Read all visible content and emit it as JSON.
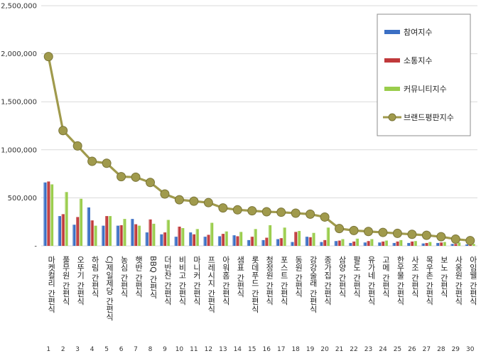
{
  "chart_data": {
    "type": "bar",
    "title": "",
    "xlabel": "",
    "ylabel": "",
    "ylim": [
      0,
      2500000
    ],
    "yticks": [
      0,
      500000,
      1000000,
      1500000,
      2000000,
      2500000
    ],
    "ytick_labels": [
      "-",
      "500,000",
      "1,000,000",
      "1,500,000",
      "2,000,000",
      "2,500,000"
    ],
    "grid": true,
    "legend_position": "top-right",
    "categories": [
      "마켓컬리 간편식",
      "풀무원 간편식",
      "오뚜기 간편식",
      "하림 간편식",
      "CJ제일제당 간편식",
      "농심 간편식",
      "햇반 간편식",
      "BBQ 간편식",
      "더반찬 간편식",
      "비비고 간편식",
      "마니커 간편식",
      "프레시지 간편식",
      "아워홈 간편식",
      "샘표 간편식",
      "롯데푸드 간편식",
      "청정원 간편식",
      "포스트 간편식",
      "동원 간편식",
      "강강술래 간편식",
      "종가집 간편식",
      "삼양 간편식",
      "팔도 간편식",
      "유가네 간편식",
      "고메 간편식",
      "한우물 간편식",
      "사조 간편식",
      "목우촌 간편식",
      "보노 간편식",
      "사옹원 간편식",
      "아임웰 간편식"
    ],
    "rank_labels": [
      "1",
      "2",
      "3",
      "4",
      "5",
      "6",
      "7",
      "8",
      "9",
      "10",
      "11",
      "12",
      "13",
      "14",
      "15",
      "16",
      "17",
      "18",
      "19",
      "20",
      "21",
      "22",
      "23",
      "24",
      "25",
      "26",
      "27",
      "28",
      "29",
      "30"
    ],
    "series": [
      {
        "name": "참여지수",
        "color": "#3b6fc4",
        "mark": "bar",
        "values": [
          660000,
          310000,
          220000,
          400000,
          210000,
          210000,
          280000,
          140000,
          120000,
          95000,
          140000,
          95000,
          100000,
          110000,
          60000,
          60000,
          70000,
          40000,
          95000,
          40000,
          50000,
          30000,
          35000,
          35000,
          30000,
          30000,
          25000,
          30000,
          20000,
          15000
        ]
      },
      {
        "name": "소통지수",
        "color": "#c0393b",
        "mark": "bar",
        "values": [
          670000,
          330000,
          300000,
          265000,
          310000,
          215000,
          225000,
          275000,
          140000,
          200000,
          120000,
          115000,
          125000,
          100000,
          95000,
          85000,
          80000,
          145000,
          90000,
          60000,
          55000,
          45000,
          50000,
          45000,
          45000,
          45000,
          30000,
          35000,
          20000,
          25000
        ]
      },
      {
        "name": "커뮤니티지수",
        "color": "#9acd4c",
        "mark": "bar",
        "values": [
          640000,
          560000,
          490000,
          210000,
          310000,
          280000,
          210000,
          230000,
          270000,
          185000,
          175000,
          240000,
          150000,
          145000,
          175000,
          215000,
          190000,
          155000,
          135000,
          190000,
          70000,
          75000,
          70000,
          55000,
          60000,
          50000,
          40000,
          40000,
          35000,
          20000
        ]
      },
      {
        "name": "브랜드평판지수",
        "color": "#a09a4c",
        "mark": "line",
        "values": [
          1970000,
          1200000,
          1040000,
          880000,
          860000,
          720000,
          715000,
          660000,
          540000,
          480000,
          465000,
          450000,
          395000,
          375000,
          365000,
          355000,
          350000,
          340000,
          330000,
          300000,
          180000,
          160000,
          150000,
          140000,
          130000,
          120000,
          110000,
          95000,
          70000,
          55000
        ]
      }
    ]
  }
}
